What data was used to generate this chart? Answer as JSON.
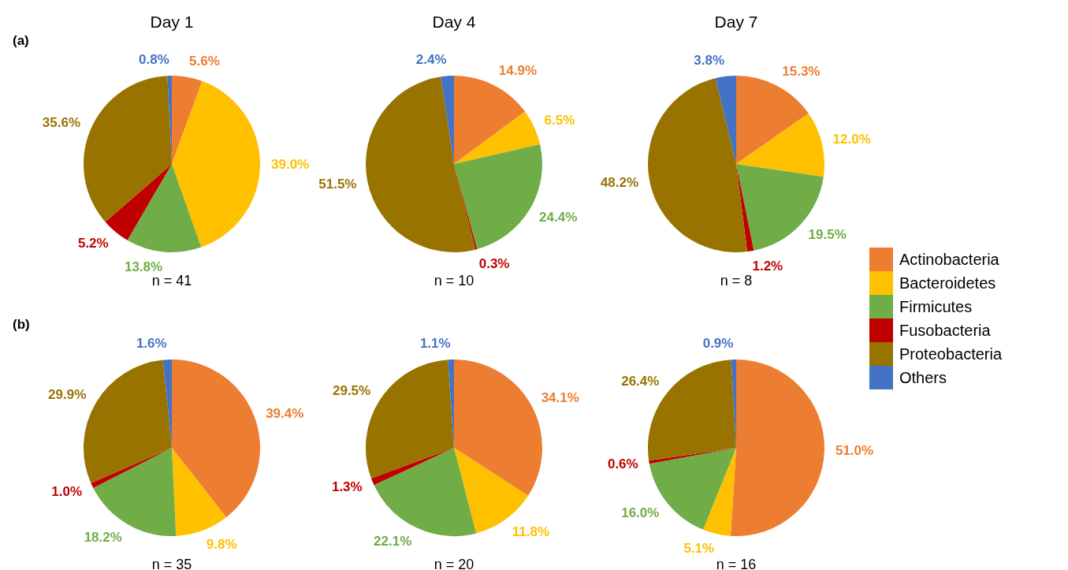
{
  "chart_data": [
    {
      "type": "pie",
      "title": "Day 1",
      "categories": [
        null,
        null,
        null,
        null,
        null,
        null
      ],
      "values": [
        5.6,
        39.0,
        13.8,
        5.2,
        35.6,
        0.8
      ],
      "value_labels": [
        "5.6%",
        "39.0%",
        "13.8%",
        "5.2%",
        "35.6%",
        "0.8%"
      ],
      "colors": [
        "#ed7d31",
        "#ffc000",
        "#70ad47",
        "#c00000",
        "#997300",
        "#4472c4"
      ],
      "annotations": [
        "(a)",
        "n = 41"
      ]
    },
    {
      "type": "pie",
      "title": "Day 4",
      "categories": [
        null,
        null,
        null,
        null,
        null,
        null
      ],
      "values": [
        14.9,
        6.5,
        24.4,
        0.3,
        51.5,
        2.4
      ],
      "value_labels": [
        "14.9%",
        "6.5%",
        "24.4%",
        "0.3%",
        "51.5%",
        "2.4%"
      ],
      "colors": [
        "#ed7d31",
        "#ffc000",
        "#70ad47",
        "#c00000",
        "#997300",
        "#4472c4"
      ],
      "annotations": [
        "n = 10"
      ]
    },
    {
      "type": "pie",
      "title": "Day 7",
      "categories": [
        "Actinobacteria",
        "Bacteroidetes",
        "Firmicutes",
        "Fusobacteria",
        "Proteobacteria",
        "Others"
      ],
      "values": [
        15.3,
        12.0,
        19.5,
        1.2,
        48.2,
        3.8
      ],
      "value_labels": [
        "15.3%",
        "12.0%",
        "19.5%",
        "1.2%",
        "48.2%",
        "3.8%"
      ],
      "colors": [
        "#ed7d31",
        "#ffc000",
        "#70ad47",
        "#c00000",
        "#997300",
        "#4472c4"
      ],
      "annotations": [
        "n = 8"
      ],
      "legend": "right"
    },
    {
      "type": "pie",
      "categories": [
        null,
        null,
        null,
        null,
        null,
        null
      ],
      "values": [
        39.4,
        9.8,
        18.2,
        1.0,
        29.9,
        1.6
      ],
      "value_labels": [
        "39.4%",
        "9.8%",
        "18.2%",
        "1.0%",
        "29.9%",
        "1.6%"
      ],
      "colors": [
        "#ed7d31",
        "#ffc000",
        "#70ad47",
        "#c00000",
        "#997300",
        "#4472c4"
      ],
      "annotations": [
        "(b)",
        "n = 35"
      ]
    },
    {
      "type": "pie",
      "categories": [
        null,
        null,
        null,
        null,
        null,
        null
      ],
      "values": [
        34.1,
        11.8,
        22.1,
        1.3,
        29.5,
        1.1
      ],
      "value_labels": [
        "34.1%",
        "11.8%",
        "22.1%",
        "1.3%",
        "29.5%",
        "1.1%"
      ],
      "colors": [
        "#ed7d31",
        "#ffc000",
        "#70ad47",
        "#c00000",
        "#997300",
        "#4472c4"
      ],
      "annotations": [
        "n = 20"
      ]
    },
    {
      "type": "pie",
      "categories": [
        null,
        null,
        null,
        null,
        null,
        null
      ],
      "values": [
        51.0,
        5.1,
        16.0,
        0.6,
        26.4,
        0.9
      ],
      "value_labels": [
        "51.0%",
        "5.1%",
        "16.0%",
        "0.6%",
        "26.4%",
        "0.9%"
      ],
      "colors": [
        "#ed7d31",
        "#ffc000",
        "#70ad47",
        "#c00000",
        "#997300",
        "#4472c4"
      ],
      "annotations": [
        "n = 16"
      ]
    }
  ]
}
